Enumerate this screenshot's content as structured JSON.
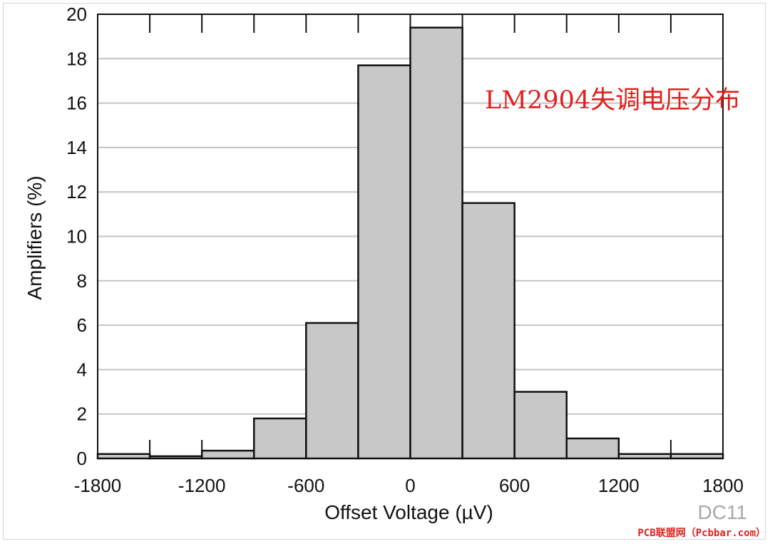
{
  "chart_data": {
    "type": "bar",
    "subtype": "histogram",
    "bins": [
      {
        "from": -1800,
        "to": -1500,
        "value": 0.2
      },
      {
        "from": -1500,
        "to": -1200,
        "value": 0.1
      },
      {
        "from": -1200,
        "to": -900,
        "value": 0.35
      },
      {
        "from": -900,
        "to": -600,
        "value": 1.8
      },
      {
        "from": -600,
        "to": -300,
        "value": 6.1
      },
      {
        "from": -300,
        "to": 0,
        "value": 17.7
      },
      {
        "from": 0,
        "to": 300,
        "value": 19.4
      },
      {
        "from": 300,
        "to": 600,
        "value": 11.5
      },
      {
        "from": 600,
        "to": 900,
        "value": 3.0
      },
      {
        "from": 900,
        "to": 1200,
        "value": 0.9
      },
      {
        "from": 1200,
        "to": 1500,
        "value": 0.2
      },
      {
        "from": 1500,
        "to": 1800,
        "value": 0.2
      }
    ],
    "xlabel": "Offset Voltage (µV)",
    "ylabel": "Amplifiers (%)",
    "xlim": [
      -1800,
      1800
    ],
    "ylim": [
      0,
      20
    ],
    "xticks": [
      "-1800",
      "-1200",
      "-600",
      "0",
      "600",
      "1200",
      "1800"
    ],
    "yticks": [
      "0",
      "2",
      "4",
      "6",
      "8",
      "10",
      "12",
      "14",
      "16",
      "18",
      "20"
    ],
    "grid": "horizontal",
    "bar_color": "#c8c8c8",
    "annotation": "LM2904失调电压分布",
    "annotation_color": "#e0201d",
    "figure_code": "DC11"
  },
  "watermark": "PCB联盟网（Pcbbar.com）"
}
